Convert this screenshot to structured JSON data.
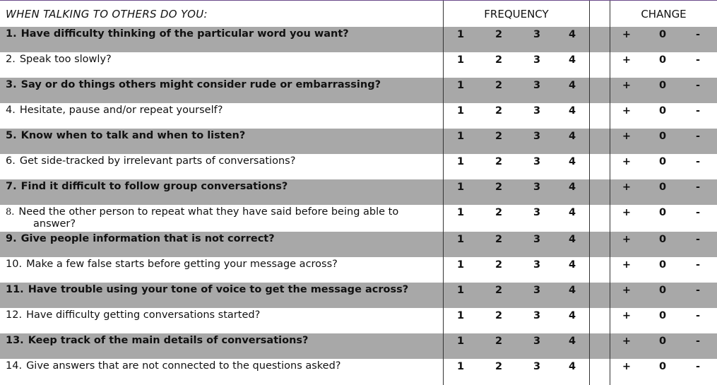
{
  "header": {
    "title": "WHEN TALKING TO OTHERS DO YOU:",
    "frequency_label": "FREQUENCY",
    "change_label": "CHANGE"
  },
  "frequency_options": [
    "1",
    "2",
    "3",
    "4"
  ],
  "change_options": [
    "+",
    "0",
    "-"
  ],
  "questions": [
    {
      "number": "1.",
      "text": "Have difficulty thinking of the particular word you want?",
      "continuation": "",
      "bold": true,
      "shaded": true
    },
    {
      "number": "2.",
      "text": "Speak too slowly?",
      "continuation": "",
      "bold": false,
      "shaded": false
    },
    {
      "number": "3.",
      "text": "Say or do things others might consider rude or embarrassing?",
      "continuation": "",
      "bold": true,
      "shaded": true
    },
    {
      "number": "4.",
      "text": "Hesitate, pause and/or repeat yourself?",
      "continuation": "",
      "bold": false,
      "shaded": false
    },
    {
      "number": "5.",
      "text": "Know when to talk and when to listen?",
      "continuation": "",
      "bold": true,
      "shaded": true
    },
    {
      "number": "6.",
      "text": "Get side-tracked by irrelevant parts of conversations?",
      "continuation": "",
      "bold": false,
      "shaded": false
    },
    {
      "number": "7.",
      "text": "Find it difficult to follow group conversations?",
      "continuation": "",
      "bold": true,
      "shaded": true
    },
    {
      "number": "8.",
      "text": "Need the other person to repeat what they have said before being able to",
      "continuation": "answer?",
      "bold": false,
      "shaded": false
    },
    {
      "number": "9.",
      "text": "Give people information that is not correct?",
      "continuation": "",
      "bold": true,
      "shaded": true
    },
    {
      "number": "10.",
      "text": "Make a few false starts before getting your message across?",
      "continuation": "",
      "bold": false,
      "shaded": false
    },
    {
      "number": "11.",
      "text": "Have trouble using your tone of voice to get the message across?",
      "continuation": "",
      "bold": true,
      "shaded": true
    },
    {
      "number": "12.",
      "text": "Have difficulty getting conversations started?",
      "continuation": "",
      "bold": false,
      "shaded": false
    },
    {
      "number": "13.",
      "text": "Keep track of the main details of conversations?",
      "continuation": "",
      "bold": true,
      "shaded": true
    },
    {
      "number": "14.",
      "text": "Give answers that are not connected to the questions asked?",
      "continuation": "",
      "bold": false,
      "shaded": false
    }
  ]
}
